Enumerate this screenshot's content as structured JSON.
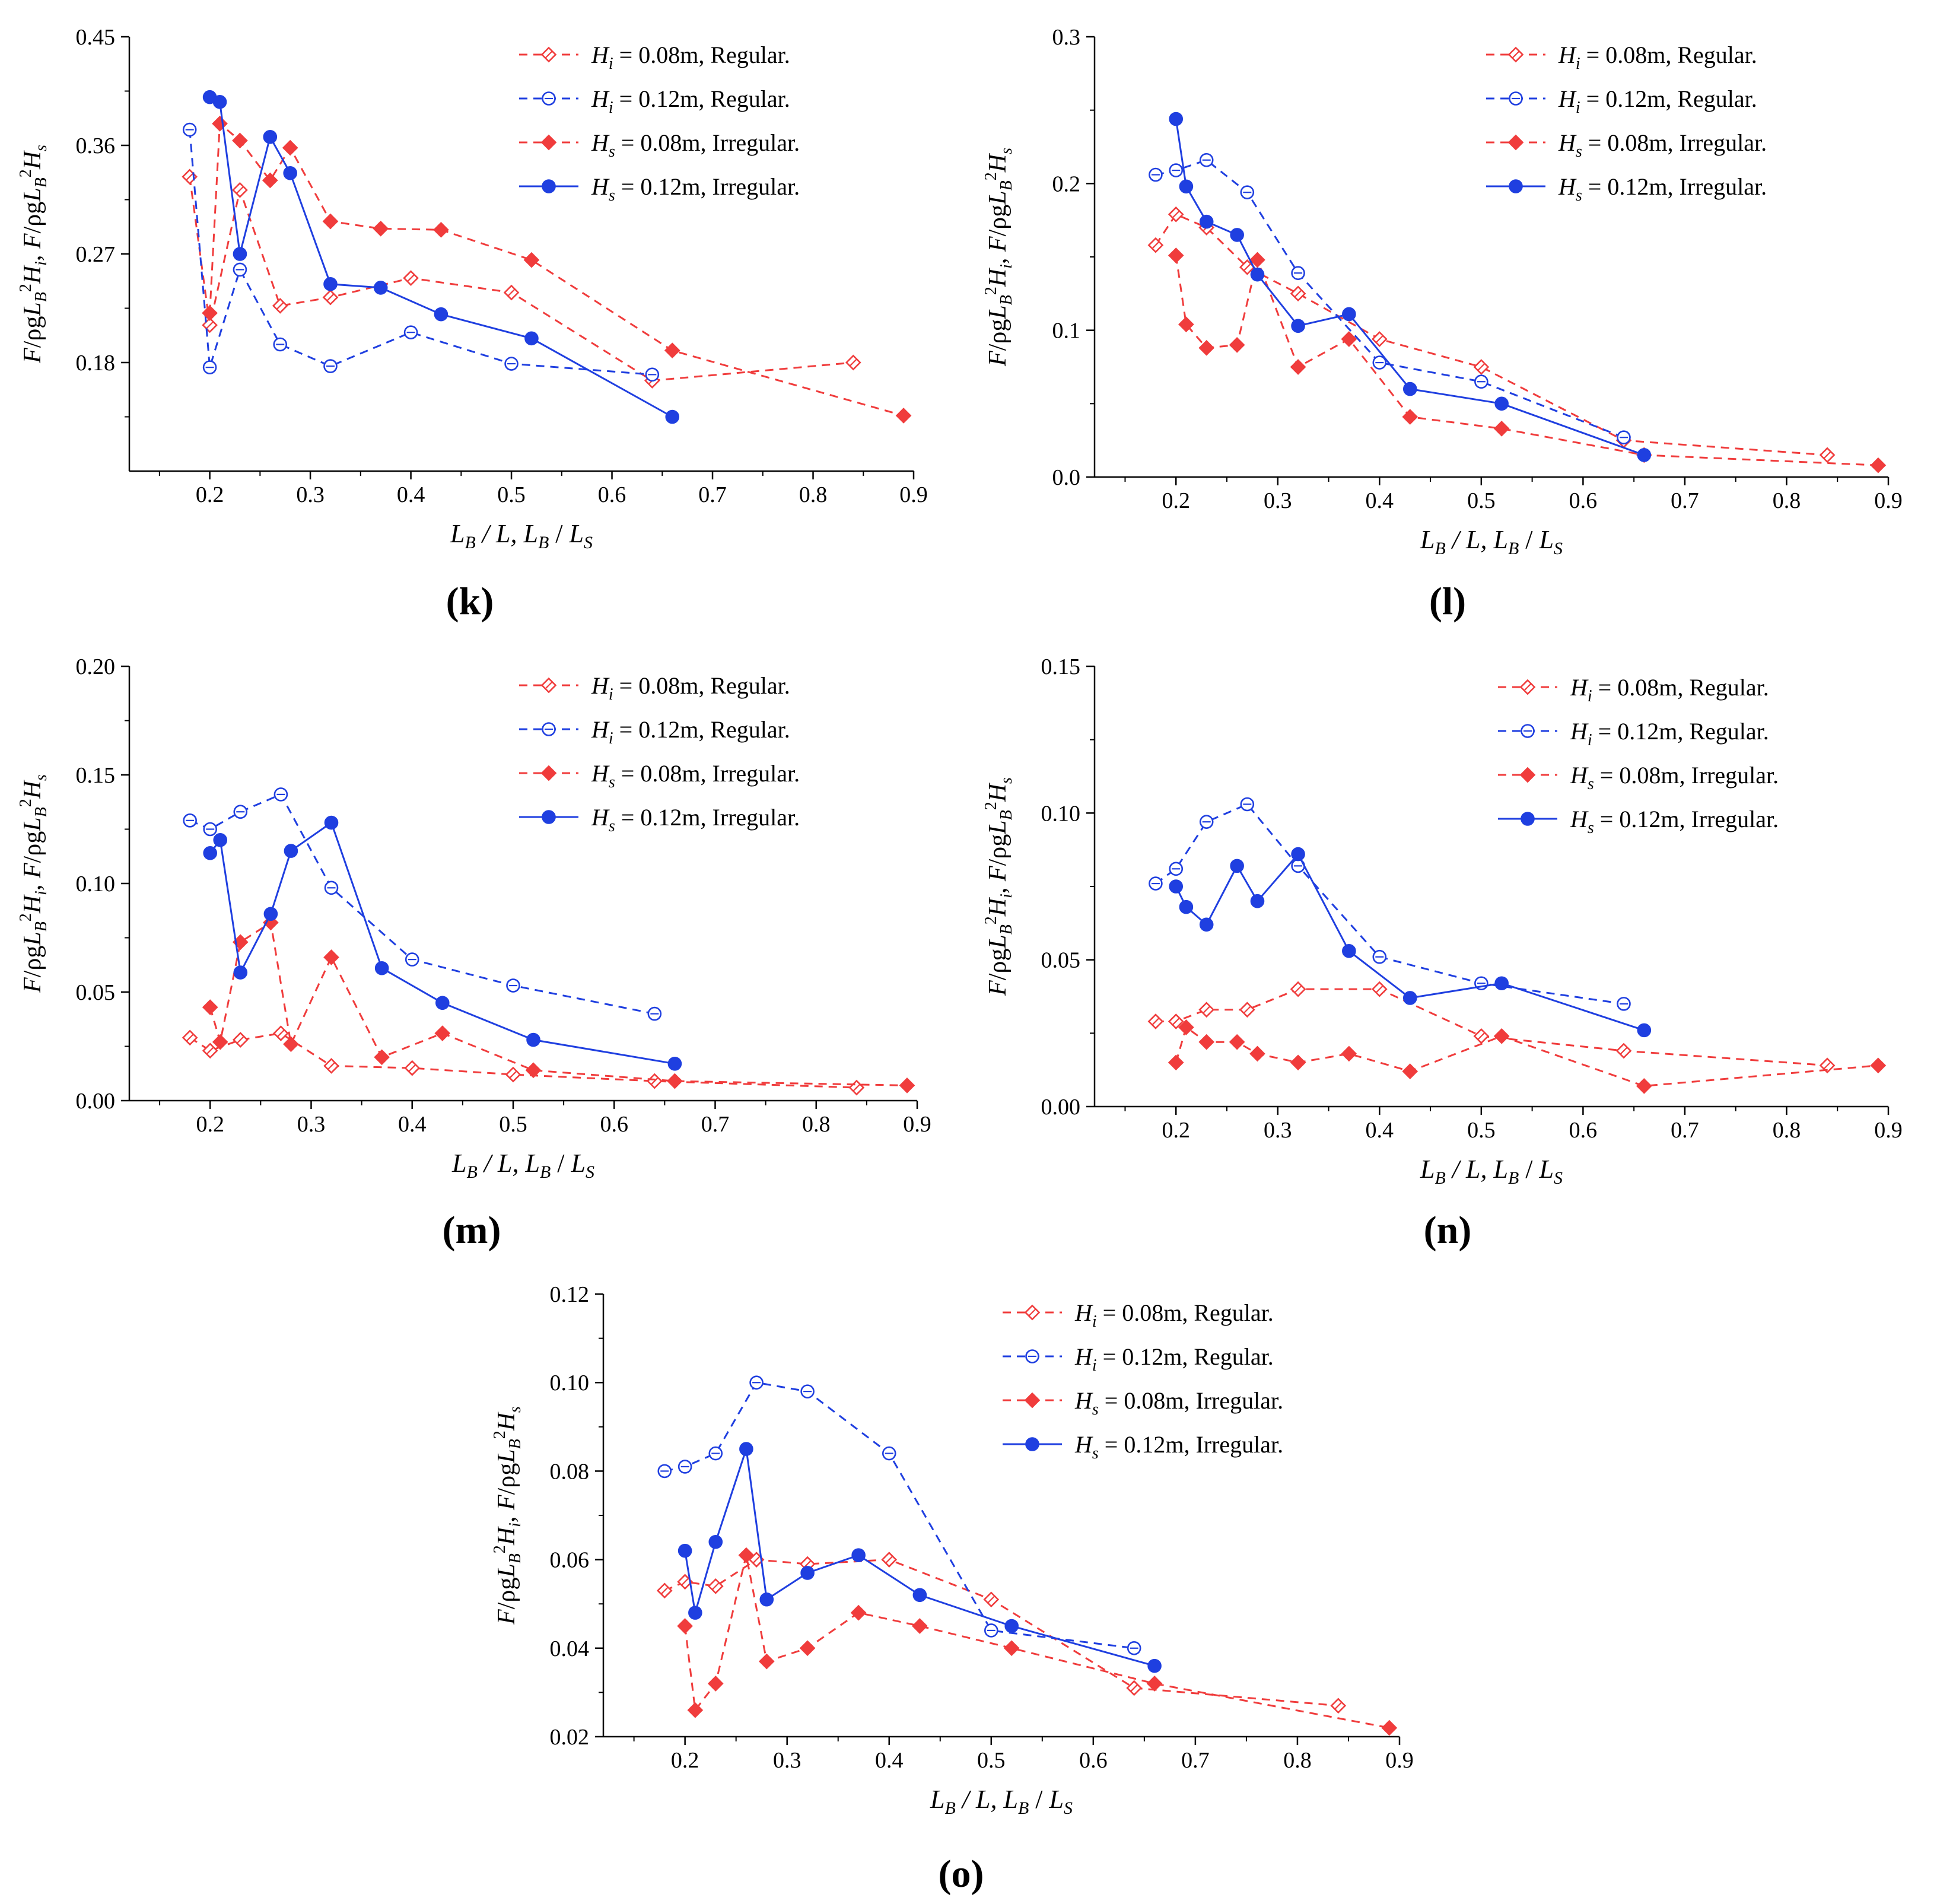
{
  "figure": {
    "xlabel_parts": [
      "L",
      "B",
      " / L, ",
      "L",
      "B",
      " / ",
      "L",
      "S"
    ],
    "ylabel_parts": [
      "F",
      "/ρg",
      "L",
      "B",
      "2",
      "H",
      "i",
      ", ",
      "F",
      "/ρg",
      "L",
      "B",
      "2",
      "H",
      "s"
    ],
    "legend_labels": [
      {
        "sym": "H",
        "sub": "i",
        "text": " = 0.08m, Regular."
      },
      {
        "sym": "H",
        "sub": "i",
        "text": " = 0.12m, Regular."
      },
      {
        "sym": "H",
        "sub": "s",
        "text": " = 0.08m, Irregular."
      },
      {
        "sym": "H",
        "sub": "s",
        "text": " = 0.12m, Irregular."
      }
    ],
    "colors": {
      "red": "#f03c3c",
      "blue": "#1f3fe0",
      "axis": "#000000"
    }
  },
  "chart_data": [
    {
      "type": "line",
      "panel_label": "(k)",
      "xlim": [
        0.12,
        0.9
      ],
      "ylim": [
        0.09,
        0.45
      ],
      "xticks": [
        "0.2",
        "0.3",
        "0.4",
        "0.5",
        "0.6",
        "0.7",
        "0.8",
        "0.9"
      ],
      "yticks": [
        "0.18",
        "0.27",
        "0.36",
        "0.45"
      ],
      "series": [
        {
          "name": "Hi = 0.08m, Regular.",
          "x": [
            0.18,
            0.2,
            0.23,
            0.27,
            0.32,
            0.4,
            0.5,
            0.64,
            0.84
          ],
          "y": [
            0.334,
            0.211,
            0.323,
            0.227,
            0.234,
            0.25,
            0.238,
            0.165,
            0.18
          ]
        },
        {
          "name": "Hi = 0.12m, Regular.",
          "x": [
            0.18,
            0.2,
            0.23,
            0.27,
            0.32,
            0.4,
            0.5,
            0.64
          ],
          "y": [
            0.373,
            0.176,
            0.257,
            0.195,
            0.177,
            0.205,
            0.179,
            0.17
          ]
        },
        {
          "name": "Hs = 0.08m, Irregular.",
          "x": [
            0.2,
            0.21,
            0.23,
            0.26,
            0.28,
            0.32,
            0.37,
            0.43,
            0.52,
            0.66,
            0.89
          ],
          "y": [
            0.221,
            0.378,
            0.364,
            0.331,
            0.358,
            0.297,
            0.291,
            0.29,
            0.265,
            0.19,
            0.136
          ]
        },
        {
          "name": "Hs = 0.12m, Irregular.",
          "x": [
            0.2,
            0.21,
            0.23,
            0.26,
            0.28,
            0.32,
            0.37,
            0.43,
            0.52,
            0.66
          ],
          "y": [
            0.4,
            0.396,
            0.27,
            0.367,
            0.337,
            0.245,
            0.242,
            0.22,
            0.2,
            0.135
          ]
        }
      ]
    },
    {
      "type": "line",
      "panel_label": "(l)",
      "xlim": [
        0.12,
        0.9
      ],
      "ylim": [
        0.0,
        0.3
      ],
      "xticks": [
        "0.2",
        "0.3",
        "0.4",
        "0.5",
        "0.6",
        "0.7",
        "0.8",
        "0.9"
      ],
      "yticks": [
        "0.0",
        "0.1",
        "0.2",
        "0.3"
      ],
      "series": [
        {
          "name": "Hi = 0.08m, Regular.",
          "x": [
            0.18,
            0.2,
            0.23,
            0.27,
            0.32,
            0.4,
            0.5,
            0.64,
            0.84
          ],
          "y": [
            0.158,
            0.179,
            0.17,
            0.143,
            0.125,
            0.094,
            0.075,
            0.025,
            0.015
          ]
        },
        {
          "name": "Hi = 0.12m, Regular.",
          "x": [
            0.18,
            0.2,
            0.23,
            0.27,
            0.32,
            0.4,
            0.5,
            0.64
          ],
          "y": [
            0.206,
            0.209,
            0.216,
            0.194,
            0.139,
            0.078,
            0.065,
            0.027
          ]
        },
        {
          "name": "Hs = 0.08m, Irregular.",
          "x": [
            0.2,
            0.21,
            0.23,
            0.26,
            0.28,
            0.32,
            0.37,
            0.43,
            0.52,
            0.66,
            0.89
          ],
          "y": [
            0.151,
            0.104,
            0.088,
            0.09,
            0.148,
            0.075,
            0.094,
            0.041,
            0.033,
            0.015,
            0.008
          ]
        },
        {
          "name": "Hs = 0.12m, Irregular.",
          "x": [
            0.2,
            0.21,
            0.23,
            0.26,
            0.28,
            0.32,
            0.37,
            0.43,
            0.52,
            0.66
          ],
          "y": [
            0.244,
            0.198,
            0.174,
            0.165,
            0.138,
            0.103,
            0.111,
            0.06,
            0.05,
            0.015
          ]
        }
      ]
    },
    {
      "type": "line",
      "panel_label": "(m)",
      "xlim": [
        0.12,
        0.9
      ],
      "ylim": [
        0.0,
        0.2
      ],
      "xticks": [
        "0.2",
        "0.3",
        "0.4",
        "0.5",
        "0.6",
        "0.7",
        "0.8",
        "0.9"
      ],
      "yticks": [
        "0.00",
        "0.05",
        "0.10",
        "0.15",
        "0.20"
      ],
      "series": [
        {
          "name": "Hi = 0.08m, Regular.",
          "x": [
            0.18,
            0.2,
            0.23,
            0.27,
            0.32,
            0.4,
            0.5,
            0.64,
            0.84
          ],
          "y": [
            0.029,
            0.023,
            0.028,
            0.031,
            0.016,
            0.015,
            0.012,
            0.009,
            0.006
          ]
        },
        {
          "name": "Hi = 0.12m, Regular.",
          "x": [
            0.18,
            0.2,
            0.23,
            0.27,
            0.32,
            0.4,
            0.5,
            0.64
          ],
          "y": [
            0.129,
            0.125,
            0.133,
            0.141,
            0.098,
            0.065,
            0.053,
            0.04
          ]
        },
        {
          "name": "Hs = 0.08m, Irregular.",
          "x": [
            0.2,
            0.21,
            0.23,
            0.26,
            0.28,
            0.32,
            0.37,
            0.43,
            0.52,
            0.66,
            0.89
          ],
          "y": [
            0.043,
            0.027,
            0.073,
            0.082,
            0.026,
            0.066,
            0.02,
            0.031,
            0.014,
            0.009,
            0.007
          ]
        },
        {
          "name": "Hs = 0.12m, Irregular.",
          "x": [
            0.2,
            0.21,
            0.23,
            0.26,
            0.28,
            0.32,
            0.37,
            0.43,
            0.52,
            0.66
          ],
          "y": [
            0.114,
            0.12,
            0.059,
            0.086,
            0.115,
            0.128,
            0.061,
            0.045,
            0.028,
            0.017
          ]
        }
      ]
    },
    {
      "type": "line",
      "panel_label": "(n)",
      "xlim": [
        0.12,
        0.9
      ],
      "ylim": [
        0.0,
        0.15
      ],
      "xticks": [
        "0.2",
        "0.3",
        "0.4",
        "0.5",
        "0.6",
        "0.7",
        "0.8",
        "0.9"
      ],
      "yticks": [
        "0.00",
        "0.05",
        "0.10",
        "0.15"
      ],
      "series": [
        {
          "name": "Hi = 0.08m, Regular.",
          "x": [
            0.18,
            0.2,
            0.23,
            0.27,
            0.32,
            0.4,
            0.5,
            0.64,
            0.84
          ],
          "y": [
            0.029,
            0.029,
            0.033,
            0.033,
            0.04,
            0.04,
            0.024,
            0.019,
            0.014
          ]
        },
        {
          "name": "Hi = 0.12m, Regular.",
          "x": [
            0.18,
            0.2,
            0.23,
            0.27,
            0.32,
            0.4,
            0.5,
            0.64
          ],
          "y": [
            0.076,
            0.081,
            0.097,
            0.103,
            0.082,
            0.051,
            0.042,
            0.035
          ]
        },
        {
          "name": "Hs = 0.08m, Irregular.",
          "x": [
            0.2,
            0.21,
            0.23,
            0.26,
            0.28,
            0.32,
            0.37,
            0.43,
            0.52,
            0.66,
            0.89
          ],
          "y": [
            0.015,
            0.027,
            0.022,
            0.022,
            0.018,
            0.015,
            0.018,
            0.012,
            0.024,
            0.007,
            0.014
          ]
        },
        {
          "name": "Hs = 0.12m, Irregular.",
          "x": [
            0.2,
            0.21,
            0.23,
            0.26,
            0.28,
            0.32,
            0.37,
            0.43,
            0.52,
            0.66
          ],
          "y": [
            0.075,
            0.068,
            0.062,
            0.082,
            0.07,
            0.086,
            0.053,
            0.037,
            0.042,
            0.026
          ]
        }
      ]
    },
    {
      "type": "line",
      "panel_label": "(o)",
      "xlim": [
        0.12,
        0.9
      ],
      "ylim": [
        0.02,
        0.12
      ],
      "xticks": [
        "0.2",
        "0.3",
        "0.4",
        "0.5",
        "0.6",
        "0.7",
        "0.8",
        "0.9"
      ],
      "yticks": [
        "0.02",
        "0.04",
        "0.06",
        "0.08",
        "0.10",
        "0.12"
      ],
      "series": [
        {
          "name": "Hi = 0.08m, Regular.",
          "x": [
            0.18,
            0.2,
            0.23,
            0.27,
            0.32,
            0.4,
            0.5,
            0.64,
            0.84
          ],
          "y": [
            0.053,
            0.055,
            0.054,
            0.06,
            0.059,
            0.06,
            0.051,
            0.031,
            0.027
          ]
        },
        {
          "name": "Hi = 0.12m, Regular.",
          "x": [
            0.18,
            0.2,
            0.23,
            0.27,
            0.32,
            0.4,
            0.5,
            0.64
          ],
          "y": [
            0.08,
            0.081,
            0.084,
            0.1,
            0.098,
            0.084,
            0.044,
            0.04
          ]
        },
        {
          "name": "Hs = 0.08m, Irregular.",
          "x": [
            0.2,
            0.21,
            0.23,
            0.26,
            0.28,
            0.32,
            0.37,
            0.43,
            0.52,
            0.66,
            0.89
          ],
          "y": [
            0.045,
            0.026,
            0.032,
            0.061,
            0.037,
            0.04,
            0.048,
            0.045,
            0.04,
            0.032,
            0.022
          ]
        },
        {
          "name": "Hs = 0.12m, Irregular.",
          "x": [
            0.2,
            0.21,
            0.23,
            0.26,
            0.28,
            0.32,
            0.37,
            0.43,
            0.52,
            0.66
          ],
          "y": [
            0.062,
            0.048,
            0.064,
            0.085,
            0.051,
            0.057,
            0.061,
            0.052,
            0.045,
            0.036
          ]
        }
      ]
    }
  ]
}
